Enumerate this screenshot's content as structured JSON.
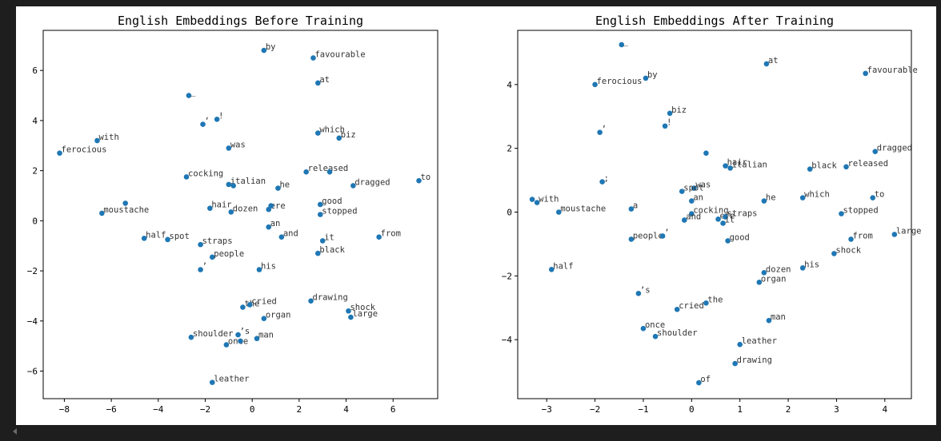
{
  "chart_data": [
    {
      "type": "scatter",
      "title": "English Embeddings Before Training",
      "xlabel": "",
      "ylabel": "",
      "xlim": [
        -8.9,
        7.9
      ],
      "ylim": [
        -7.1,
        7.6
      ],
      "xticks": [
        -8,
        -6,
        -4,
        -2,
        0,
        2,
        4,
        6
      ],
      "yticks": [
        -6,
        -4,
        -2,
        0,
        2,
        4,
        6
      ],
      "grid": false,
      "point_color": "#1f77b4",
      "points": [
        {
          "x": 0.5,
          "y": 6.8,
          "label": "by"
        },
        {
          "x": 2.6,
          "y": 6.5,
          "label": "favourable"
        },
        {
          "x": 2.8,
          "y": 5.5,
          "label": "at"
        },
        {
          "x": -2.7,
          "y": 5.0,
          "label": "_"
        },
        {
          "x": -2.1,
          "y": 3.85,
          "label": "‘"
        },
        {
          "x": -1.5,
          "y": 4.05,
          "label": "!"
        },
        {
          "x": -6.6,
          "y": 3.2,
          "label": "with"
        },
        {
          "x": -8.2,
          "y": 2.7,
          "label": "ferocious"
        },
        {
          "x": -1.0,
          "y": 2.9,
          "label": "was"
        },
        {
          "x": 2.8,
          "y": 3.5,
          "label": "which"
        },
        {
          "x": 3.7,
          "y": 3.3,
          "label": "biz"
        },
        {
          "x": -2.8,
          "y": 1.75,
          "label": "cocking"
        },
        {
          "x": -1.0,
          "y": 1.45,
          "label": "italian"
        },
        {
          "x": -0.8,
          "y": 1.4,
          "label": ""
        },
        {
          "x": 1.1,
          "y": 1.3,
          "label": "he"
        },
        {
          "x": 2.3,
          "y": 1.95,
          "label": "released"
        },
        {
          "x": 3.3,
          "y": 1.95,
          "label": ""
        },
        {
          "x": 4.3,
          "y": 1.4,
          "label": "dragged"
        },
        {
          "x": 7.1,
          "y": 1.6,
          "label": "to"
        },
        {
          "x": -5.4,
          "y": 0.7,
          "label": ""
        },
        {
          "x": -6.4,
          "y": 0.3,
          "label": "moustache"
        },
        {
          "x": -1.8,
          "y": 0.5,
          "label": "hair"
        },
        {
          "x": -0.9,
          "y": 0.35,
          "label": "dozen"
        },
        {
          "x": 0.7,
          "y": 0.45,
          "label": "ere"
        },
        {
          "x": 0.8,
          "y": 0.6,
          "label": ""
        },
        {
          "x": 2.9,
          "y": 0.65,
          "label": "good"
        },
        {
          "x": 2.9,
          "y": 0.25,
          "label": "stopped"
        },
        {
          "x": 0.7,
          "y": -0.25,
          "label": "an"
        },
        {
          "x": -4.6,
          "y": -0.7,
          "label": "half"
        },
        {
          "x": -3.6,
          "y": -0.75,
          "label": "spot"
        },
        {
          "x": -2.2,
          "y": -0.95,
          "label": "straps"
        },
        {
          "x": 1.25,
          "y": -0.65,
          "label": "and"
        },
        {
          "x": 3.0,
          "y": -0.8,
          "label": "it"
        },
        {
          "x": 5.4,
          "y": -0.65,
          "label": "from"
        },
        {
          "x": 2.8,
          "y": -1.3,
          "label": "black"
        },
        {
          "x": -1.7,
          "y": -1.45,
          "label": "people"
        },
        {
          "x": -2.2,
          "y": -1.95,
          "label": "’"
        },
        {
          "x": 0.3,
          "y": -1.95,
          "label": "his"
        },
        {
          "x": -0.4,
          "y": -3.45,
          "label": "the"
        },
        {
          "x": -0.1,
          "y": -3.35,
          "label": "cried"
        },
        {
          "x": 2.5,
          "y": -3.2,
          "label": "drawing"
        },
        {
          "x": 4.1,
          "y": -3.6,
          "label": "shock"
        },
        {
          "x": 4.2,
          "y": -3.85,
          "label": "large"
        },
        {
          "x": 0.5,
          "y": -3.9,
          "label": "organ"
        },
        {
          "x": -2.6,
          "y": -4.65,
          "label": "shoulder"
        },
        {
          "x": -0.6,
          "y": -4.55,
          "label": "’s"
        },
        {
          "x": -1.1,
          "y": -4.95,
          "label": "once"
        },
        {
          "x": -0.5,
          "y": -4.8,
          "label": ""
        },
        {
          "x": 0.2,
          "y": -4.7,
          "label": "man"
        },
        {
          "x": -1.7,
          "y": -6.45,
          "label": "leather"
        }
      ]
    },
    {
      "type": "scatter",
      "title": "English Embeddings After Training",
      "xlabel": "",
      "ylabel": "",
      "xlim": [
        -3.6,
        4.55
      ],
      "ylim": [
        -5.85,
        5.7
      ],
      "xticks": [
        -3,
        -2,
        -1,
        0,
        1,
        2,
        3,
        4
      ],
      "yticks": [
        -4,
        -2,
        0,
        2,
        4
      ],
      "grid": false,
      "point_color": "#1f77b4",
      "points": [
        {
          "x": -1.45,
          "y": 5.25,
          "label": "_"
        },
        {
          "x": 1.55,
          "y": 4.65,
          "label": "at"
        },
        {
          "x": 3.6,
          "y": 4.35,
          "label": "favourable"
        },
        {
          "x": -0.95,
          "y": 4.2,
          "label": "by"
        },
        {
          "x": -2.0,
          "y": 4.0,
          "label": "ferocious"
        },
        {
          "x": -0.45,
          "y": 3.1,
          "label": "biz"
        },
        {
          "x": -0.55,
          "y": 2.7,
          "label": "!"
        },
        {
          "x": -1.9,
          "y": 2.5,
          "label": "‘"
        },
        {
          "x": 0.3,
          "y": 1.85,
          "label": ""
        },
        {
          "x": 3.8,
          "y": 1.9,
          "label": "dragged"
        },
        {
          "x": 0.7,
          "y": 1.45,
          "label": "hair"
        },
        {
          "x": 0.8,
          "y": 1.38,
          "label": "italian"
        },
        {
          "x": 2.45,
          "y": 1.35,
          "label": "black"
        },
        {
          "x": 3.2,
          "y": 1.42,
          "label": "released"
        },
        {
          "x": -1.85,
          "y": 0.95,
          "label": ";"
        },
        {
          "x": 0.05,
          "y": 0.75,
          "label": "was"
        },
        {
          "x": -0.2,
          "y": 0.65,
          "label": "spot"
        },
        {
          "x": 0.0,
          "y": 0.35,
          "label": "an"
        },
        {
          "x": 1.5,
          "y": 0.35,
          "label": "he"
        },
        {
          "x": 2.3,
          "y": 0.45,
          "label": "which"
        },
        {
          "x": 3.75,
          "y": 0.45,
          "label": "to"
        },
        {
          "x": -3.3,
          "y": 0.4,
          "label": ""
        },
        {
          "x": -3.2,
          "y": 0.3,
          "label": "with"
        },
        {
          "x": -2.75,
          "y": 0.0,
          "label": "moustache"
        },
        {
          "x": -1.25,
          "y": 0.1,
          "label": "a"
        },
        {
          "x": 0.0,
          "y": -0.05,
          "label": "cocking"
        },
        {
          "x": -0.15,
          "y": -0.25,
          "label": "and"
        },
        {
          "x": 0.55,
          "y": -0.22,
          "label": "ere"
        },
        {
          "x": 0.7,
          "y": -0.15,
          "label": "straps"
        },
        {
          "x": 0.65,
          "y": -0.35,
          "label": "it"
        },
        {
          "x": 3.1,
          "y": -0.05,
          "label": "stopped"
        },
        {
          "x": -1.25,
          "y": -0.85,
          "label": "people"
        },
        {
          "x": -0.6,
          "y": -0.75,
          "label": "’"
        },
        {
          "x": 0.75,
          "y": -0.9,
          "label": "good"
        },
        {
          "x": 3.3,
          "y": -0.85,
          "label": "from"
        },
        {
          "x": 4.2,
          "y": -0.7,
          "label": "large"
        },
        {
          "x": 2.95,
          "y": -1.3,
          "label": "shock"
        },
        {
          "x": -2.9,
          "y": -1.8,
          "label": "half"
        },
        {
          "x": 1.5,
          "y": -1.9,
          "label": "dozen"
        },
        {
          "x": 2.3,
          "y": -1.75,
          "label": "his"
        },
        {
          "x": 1.4,
          "y": -2.2,
          "label": "organ"
        },
        {
          "x": -1.1,
          "y": -2.55,
          "label": "’s"
        },
        {
          "x": 0.3,
          "y": -2.85,
          "label": "the"
        },
        {
          "x": -0.3,
          "y": -3.05,
          "label": "cried"
        },
        {
          "x": 1.6,
          "y": -3.4,
          "label": "man"
        },
        {
          "x": -1.0,
          "y": -3.65,
          "label": "once"
        },
        {
          "x": -0.75,
          "y": -3.9,
          "label": "shoulder"
        },
        {
          "x": 1.0,
          "y": -4.15,
          "label": "leather"
        },
        {
          "x": 0.9,
          "y": -4.75,
          "label": "drawing"
        },
        {
          "x": 0.15,
          "y": -5.35,
          "label": "of"
        }
      ]
    }
  ]
}
